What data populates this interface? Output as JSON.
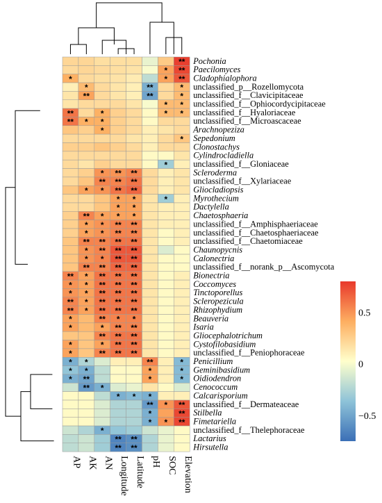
{
  "chart_data": {
    "type": "heatmap",
    "columns": [
      "AP",
      "AK",
      "AN",
      "Longitude",
      "Latitude",
      "pH",
      "SOC",
      "Elevation"
    ],
    "rows": [
      {
        "label": "Pochonia",
        "italic": true,
        "values": [
          0.22,
          0.22,
          0.18,
          0.18,
          0.18,
          -0.05,
          0.28,
          0.78
        ],
        "sig": [
          "",
          "",
          "",
          "",
          "",
          "",
          "",
          "**"
        ]
      },
      {
        "label": "Paecilomyces",
        "italic": true,
        "values": [
          0.2,
          0.22,
          0.2,
          0.18,
          0.16,
          0.0,
          0.45,
          0.75
        ],
        "sig": [
          "",
          "",
          "",
          "",
          "",
          "",
          "*",
          "**"
        ]
      },
      {
        "label": "Cladophialophora",
        "italic": true,
        "values": [
          0.4,
          0.2,
          0.18,
          0.16,
          0.12,
          -0.2,
          0.45,
          0.7
        ],
        "sig": [
          "*",
          "",
          "",
          "",
          "",
          "",
          "*",
          "**"
        ]
      },
      {
        "label": "unclassified_p__Rozellomycota",
        "italic": false,
        "values": [
          0.1,
          0.35,
          0.2,
          0.15,
          0.1,
          -0.45,
          0.2,
          0.35
        ],
        "sig": [
          "",
          "*",
          "",
          "",
          "",
          "**",
          "",
          "*"
        ]
      },
      {
        "label": "unclassified_f__Clavicipitaceae",
        "italic": false,
        "values": [
          0.15,
          0.45,
          0.2,
          0.15,
          0.1,
          -0.5,
          0.2,
          0.35
        ],
        "sig": [
          "",
          "**",
          "",
          "",
          "",
          "**",
          "",
          "*"
        ]
      },
      {
        "label": "unclassified_f__Ophiocordycipitaceae",
        "italic": false,
        "values": [
          0.15,
          0.2,
          0.2,
          0.2,
          0.15,
          0.0,
          0.35,
          0.35
        ],
        "sig": [
          "",
          "",
          "",
          "",
          "",
          "",
          "*",
          "*"
        ]
      },
      {
        "label": "unclassified_f__Hyaloriaceae",
        "italic": false,
        "values": [
          0.6,
          0.2,
          0.4,
          0.25,
          0.2,
          0.05,
          0.35,
          0.35
        ],
        "sig": [
          "**",
          "",
          "*",
          "",
          "",
          "",
          "*",
          "*"
        ]
      },
      {
        "label": "unclassified_f__Microascaceae",
        "italic": false,
        "values": [
          0.6,
          0.4,
          0.4,
          0.25,
          0.2,
          0.05,
          0.2,
          0.2
        ],
        "sig": [
          "**",
          "*",
          "*",
          "",
          "",
          "",
          "",
          ""
        ]
      },
      {
        "label": "Arachnopeziza",
        "italic": true,
        "values": [
          0.3,
          0.25,
          0.4,
          0.25,
          0.2,
          0.1,
          0.15,
          0.2
        ],
        "sig": [
          "",
          "",
          "*",
          "",
          "",
          "",
          "",
          ""
        ]
      },
      {
        "label": "Sepedonium",
        "italic": true,
        "values": [
          0.2,
          0.2,
          0.2,
          0.2,
          0.15,
          0.1,
          0.2,
          0.3
        ],
        "sig": [
          "",
          "",
          "",
          "",
          "",
          "",
          "",
          "*"
        ]
      },
      {
        "label": "Clonostachys",
        "italic": true,
        "values": [
          0.25,
          0.25,
          0.3,
          0.25,
          0.2,
          0.1,
          0.2,
          0.2
        ],
        "sig": [
          "",
          "",
          "",
          "",
          "",
          "",
          "",
          ""
        ]
      },
      {
        "label": "Cylindrocladiella",
        "italic": true,
        "values": [
          0.2,
          0.2,
          0.2,
          0.2,
          0.2,
          0.05,
          0.05,
          0.15
        ],
        "sig": [
          "",
          "",
          "",
          "",
          "",
          "",
          "",
          ""
        ]
      },
      {
        "label": "unclassified_f__Gloniaceae",
        "italic": false,
        "values": [
          0.2,
          0.15,
          0.25,
          0.2,
          0.2,
          0.05,
          -0.3,
          0.1
        ],
        "sig": [
          "",
          "",
          "",
          "",
          "",
          "",
          "*",
          ""
        ]
      },
      {
        "label": "Scleroderma",
        "italic": true,
        "values": [
          0.2,
          0.25,
          0.5,
          0.5,
          0.55,
          0.2,
          0.1,
          0.15
        ],
        "sig": [
          "",
          "",
          "*",
          "**",
          "**",
          "",
          "",
          ""
        ]
      },
      {
        "label": "unclassified_f__Xylariaceae",
        "italic": false,
        "values": [
          0.2,
          0.3,
          0.55,
          0.55,
          0.6,
          0.2,
          0.1,
          0.15
        ],
        "sig": [
          "",
          "",
          "**",
          "**",
          "**",
          "",
          "",
          ""
        ]
      },
      {
        "label": "Gliocladiopsis",
        "italic": true,
        "values": [
          0.3,
          0.45,
          0.5,
          0.6,
          0.65,
          0.2,
          0.1,
          0.15
        ],
        "sig": [
          "",
          "*",
          "*",
          "**",
          "**",
          "",
          "",
          ""
        ]
      },
      {
        "label": "Myrothecium",
        "italic": true,
        "values": [
          0.2,
          0.2,
          0.3,
          0.45,
          0.45,
          0.15,
          -0.3,
          0.1
        ],
        "sig": [
          "",
          "",
          "",
          "*",
          "*",
          "",
          "*",
          ""
        ]
      },
      {
        "label": "Dactylella",
        "italic": true,
        "values": [
          0.2,
          0.2,
          0.3,
          0.45,
          0.45,
          0.15,
          0.1,
          0.1
        ],
        "sig": [
          "",
          "",
          "",
          "*",
          "*",
          "",
          "",
          ""
        ]
      },
      {
        "label": "Chaetosphaeria",
        "italic": true,
        "values": [
          0.25,
          0.55,
          0.45,
          0.45,
          0.45,
          0.15,
          0.1,
          0.1
        ],
        "sig": [
          "",
          "**",
          "*",
          "*",
          "*",
          "",
          "",
          ""
        ]
      },
      {
        "label": "unclassified_f__Amphisphaeriaceae",
        "italic": false,
        "values": [
          0.25,
          0.45,
          0.5,
          0.55,
          0.55,
          0.15,
          0.1,
          0.1
        ],
        "sig": [
          "",
          "*",
          "*",
          "**",
          "**",
          "",
          "",
          ""
        ]
      },
      {
        "label": "unclassified_f__Chaetosphaeriaceae",
        "italic": false,
        "values": [
          0.25,
          0.45,
          0.5,
          0.55,
          0.55,
          0.15,
          0.05,
          0.1
        ],
        "sig": [
          "",
          "*",
          "*",
          "**",
          "**",
          "",
          "",
          ""
        ]
      },
      {
        "label": "unclassified_f__Chaetomiaceae",
        "italic": false,
        "values": [
          0.3,
          0.55,
          0.55,
          0.6,
          0.6,
          0.15,
          0.05,
          0.1
        ],
        "sig": [
          "",
          "**",
          "**",
          "**",
          "**",
          "",
          "",
          ""
        ]
      },
      {
        "label": "Chaunopycnis",
        "italic": true,
        "values": [
          0.3,
          0.5,
          0.55,
          0.7,
          0.7,
          0.15,
          -0.1,
          0.05
        ],
        "sig": [
          "",
          "*",
          "**",
          "**",
          "**",
          "",
          "",
          ""
        ]
      },
      {
        "label": "Calonectria",
        "italic": true,
        "values": [
          0.3,
          0.5,
          0.55,
          0.7,
          0.7,
          0.15,
          0.05,
          0.05
        ],
        "sig": [
          "",
          "*",
          "*",
          "**",
          "**",
          "",
          "",
          ""
        ]
      },
      {
        "label": "unclassified_f__norank_p__Ascomycota",
        "italic": false,
        "values": [
          0.3,
          0.55,
          0.55,
          0.65,
          0.65,
          0.15,
          0.05,
          0.05
        ],
        "sig": [
          "",
          "**",
          "**",
          "**",
          "**",
          "",
          "",
          ""
        ]
      },
      {
        "label": "Bionectria",
        "italic": true,
        "values": [
          0.55,
          0.45,
          0.6,
          0.6,
          0.6,
          0.15,
          0.05,
          0.1
        ],
        "sig": [
          "**",
          "*",
          "**",
          "**",
          "**",
          "",
          "",
          ""
        ]
      },
      {
        "label": "Coccomyces",
        "italic": true,
        "values": [
          0.5,
          0.45,
          0.6,
          0.6,
          0.6,
          0.15,
          0.05,
          0.1
        ],
        "sig": [
          "*",
          "*",
          "**",
          "**",
          "**",
          "",
          "",
          ""
        ]
      },
      {
        "label": "Tinctoporellus",
        "italic": true,
        "values": [
          0.5,
          0.45,
          0.6,
          0.6,
          0.6,
          0.15,
          0.05,
          0.1
        ],
        "sig": [
          "*",
          "*",
          "**",
          "**",
          "**",
          "",
          "",
          ""
        ]
      },
      {
        "label": "Scleropezicula",
        "italic": true,
        "values": [
          0.55,
          0.45,
          0.6,
          0.6,
          0.6,
          0.15,
          0.05,
          0.1
        ],
        "sig": [
          "**",
          "*",
          "**",
          "**",
          "**",
          "",
          "",
          ""
        ]
      },
      {
        "label": "Rhizophydium",
        "italic": true,
        "values": [
          0.55,
          0.45,
          0.6,
          0.6,
          0.6,
          0.15,
          0.05,
          0.1
        ],
        "sig": [
          "**",
          "*",
          "**",
          "**",
          "**",
          "",
          "",
          ""
        ]
      },
      {
        "label": "Beauveria",
        "italic": true,
        "values": [
          0.45,
          0.35,
          0.55,
          0.55,
          0.55,
          0.15,
          0.05,
          0.1
        ],
        "sig": [
          "*",
          "",
          "**",
          "*",
          "*",
          "",
          "",
          ""
        ]
      },
      {
        "label": "Isaria",
        "italic": true,
        "values": [
          0.45,
          0.35,
          0.45,
          0.55,
          0.55,
          0.15,
          0.05,
          0.1
        ],
        "sig": [
          "*",
          "",
          "*",
          "**",
          "**",
          "",
          "",
          ""
        ]
      },
      {
        "label": "Gliocephalotrichum",
        "italic": true,
        "values": [
          0.3,
          0.3,
          0.55,
          0.6,
          0.6,
          0.15,
          0.05,
          0.1
        ],
        "sig": [
          "",
          "",
          "**",
          "**",
          "**",
          "",
          "",
          ""
        ]
      },
      {
        "label": "Cystofilobasidium",
        "italic": true,
        "values": [
          0.45,
          0.3,
          0.45,
          0.6,
          0.6,
          0.15,
          0.05,
          0.1
        ],
        "sig": [
          "*",
          "",
          "*",
          "**",
          "**",
          "",
          "",
          ""
        ]
      },
      {
        "label": "unclassified_f__Peniophoraceae",
        "italic": false,
        "values": [
          0.45,
          0.3,
          0.55,
          0.6,
          0.6,
          0.15,
          0.05,
          0.1
        ],
        "sig": [
          "*",
          "",
          "**",
          "**",
          "**",
          "",
          "",
          ""
        ]
      },
      {
        "label": "Penicillium",
        "italic": true,
        "values": [
          -0.45,
          -0.25,
          -0.1,
          0.1,
          0.1,
          0.55,
          0.1,
          -0.4
        ],
        "sig": [
          "*",
          "*",
          "",
          "",
          "",
          "**",
          "",
          "*"
        ]
      },
      {
        "label": "Geminibasidium",
        "italic": true,
        "values": [
          -0.35,
          -0.45,
          -0.2,
          0.05,
          0.05,
          0.45,
          0.1,
          -0.4
        ],
        "sig": [
          "*",
          "*",
          "",
          "",
          "",
          "*",
          "",
          "*"
        ]
      },
      {
        "label": "Oidiodendron",
        "italic": true,
        "values": [
          -0.45,
          -0.5,
          -0.2,
          0.05,
          0.05,
          0.45,
          0.1,
          -0.4
        ],
        "sig": [
          "*",
          "**",
          "",
          "",
          "",
          "*",
          "",
          "*"
        ]
      },
      {
        "label": "Cenococcum",
        "italic": true,
        "values": [
          -0.15,
          -0.55,
          -0.45,
          -0.1,
          -0.05,
          0.15,
          0.05,
          -0.1
        ],
        "sig": [
          "",
          "**",
          "*",
          "",
          "",
          "",
          "",
          ""
        ]
      },
      {
        "label": "Calcarisporium",
        "italic": true,
        "values": [
          0.05,
          0.05,
          -0.2,
          -0.45,
          -0.4,
          -0.45,
          0.1,
          0.1
        ],
        "sig": [
          "",
          "",
          "",
          "*",
          "*",
          "*",
          "",
          ""
        ]
      },
      {
        "label": "unclassified_f__Dermateaceae",
        "italic": false,
        "values": [
          0.05,
          0.05,
          -0.1,
          -0.25,
          -0.25,
          -0.55,
          0.5,
          0.7
        ],
        "sig": [
          "",
          "",
          "",
          "",
          "",
          "**",
          "*",
          "**"
        ]
      },
      {
        "label": "Stilbella",
        "italic": true,
        "values": [
          0.05,
          0.05,
          -0.1,
          -0.25,
          -0.25,
          -0.45,
          0.45,
          0.75
        ],
        "sig": [
          "",
          "",
          "",
          "",
          "",
          "*",
          "",
          "**"
        ]
      },
      {
        "label": "Fimetariella",
        "italic": true,
        "values": [
          0.05,
          0.05,
          -0.1,
          -0.25,
          -0.25,
          -0.45,
          0.5,
          0.75
        ],
        "sig": [
          "",
          "",
          "",
          "",
          "",
          "*",
          "*",
          "**"
        ]
      },
      {
        "label": "unclassified_f__Thelephoraceae",
        "italic": false,
        "values": [
          -0.15,
          -0.25,
          -0.45,
          -0.35,
          -0.3,
          -0.15,
          -0.05,
          0.05
        ],
        "sig": [
          "",
          "",
          "*",
          "",
          "",
          "",
          "",
          ""
        ]
      },
      {
        "label": "Lactarius",
        "italic": true,
        "values": [
          -0.2,
          -0.15,
          -0.3,
          -0.65,
          -0.6,
          -0.25,
          -0.05,
          0.05
        ],
        "sig": [
          "",
          "",
          "",
          "**",
          "**",
          "",
          "",
          ""
        ]
      },
      {
        "label": "Hirsutella",
        "italic": true,
        "values": [
          -0.2,
          -0.15,
          -0.3,
          -0.65,
          -0.6,
          -0.25,
          -0.05,
          0.05
        ],
        "sig": [
          "",
          "",
          "",
          "**",
          "**",
          "",
          "",
          ""
        ]
      }
    ],
    "colorbar": {
      "range": [
        -0.75,
        0.8
      ],
      "ticks": [
        0.5,
        0,
        -0.5
      ],
      "tick_labels": [
        "0.5",
        "0",
        "−0.5"
      ],
      "colors": [
        "#3b6fb6",
        "#8ec3d8",
        "#ffffcc",
        "#fdae61",
        "#e8392c"
      ]
    }
  }
}
